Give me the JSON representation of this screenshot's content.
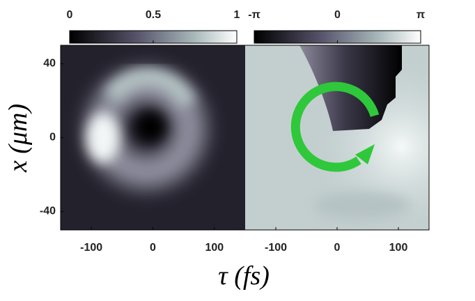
{
  "chart_data": [
    {
      "type": "heatmap",
      "xlim": [
        -150,
        150
      ],
      "xticks": [
        -100,
        0,
        100
      ],
      "ylim": [
        -50,
        50
      ],
      "yticks": [
        40,
        0,
        -40
      ],
      "xlabel": "τ  (fs)",
      "ylabel": "x (μm)",
      "colorbar": {
        "lim": [
          0,
          1
        ],
        "ticks": [
          0,
          0.5,
          1
        ]
      }
    },
    {
      "type": "heatmap",
      "xlim": [
        -150,
        150
      ],
      "xticks": [
        -100,
        0,
        100
      ],
      "colorbar": {
        "lim": [
          -3.14159,
          3.14159
        ],
        "ticks": [
          {
            "value": -3.14159,
            "label": "-π"
          },
          0,
          {
            "value": 3.14159,
            "label": "π"
          }
        ]
      }
    }
  ]
}
